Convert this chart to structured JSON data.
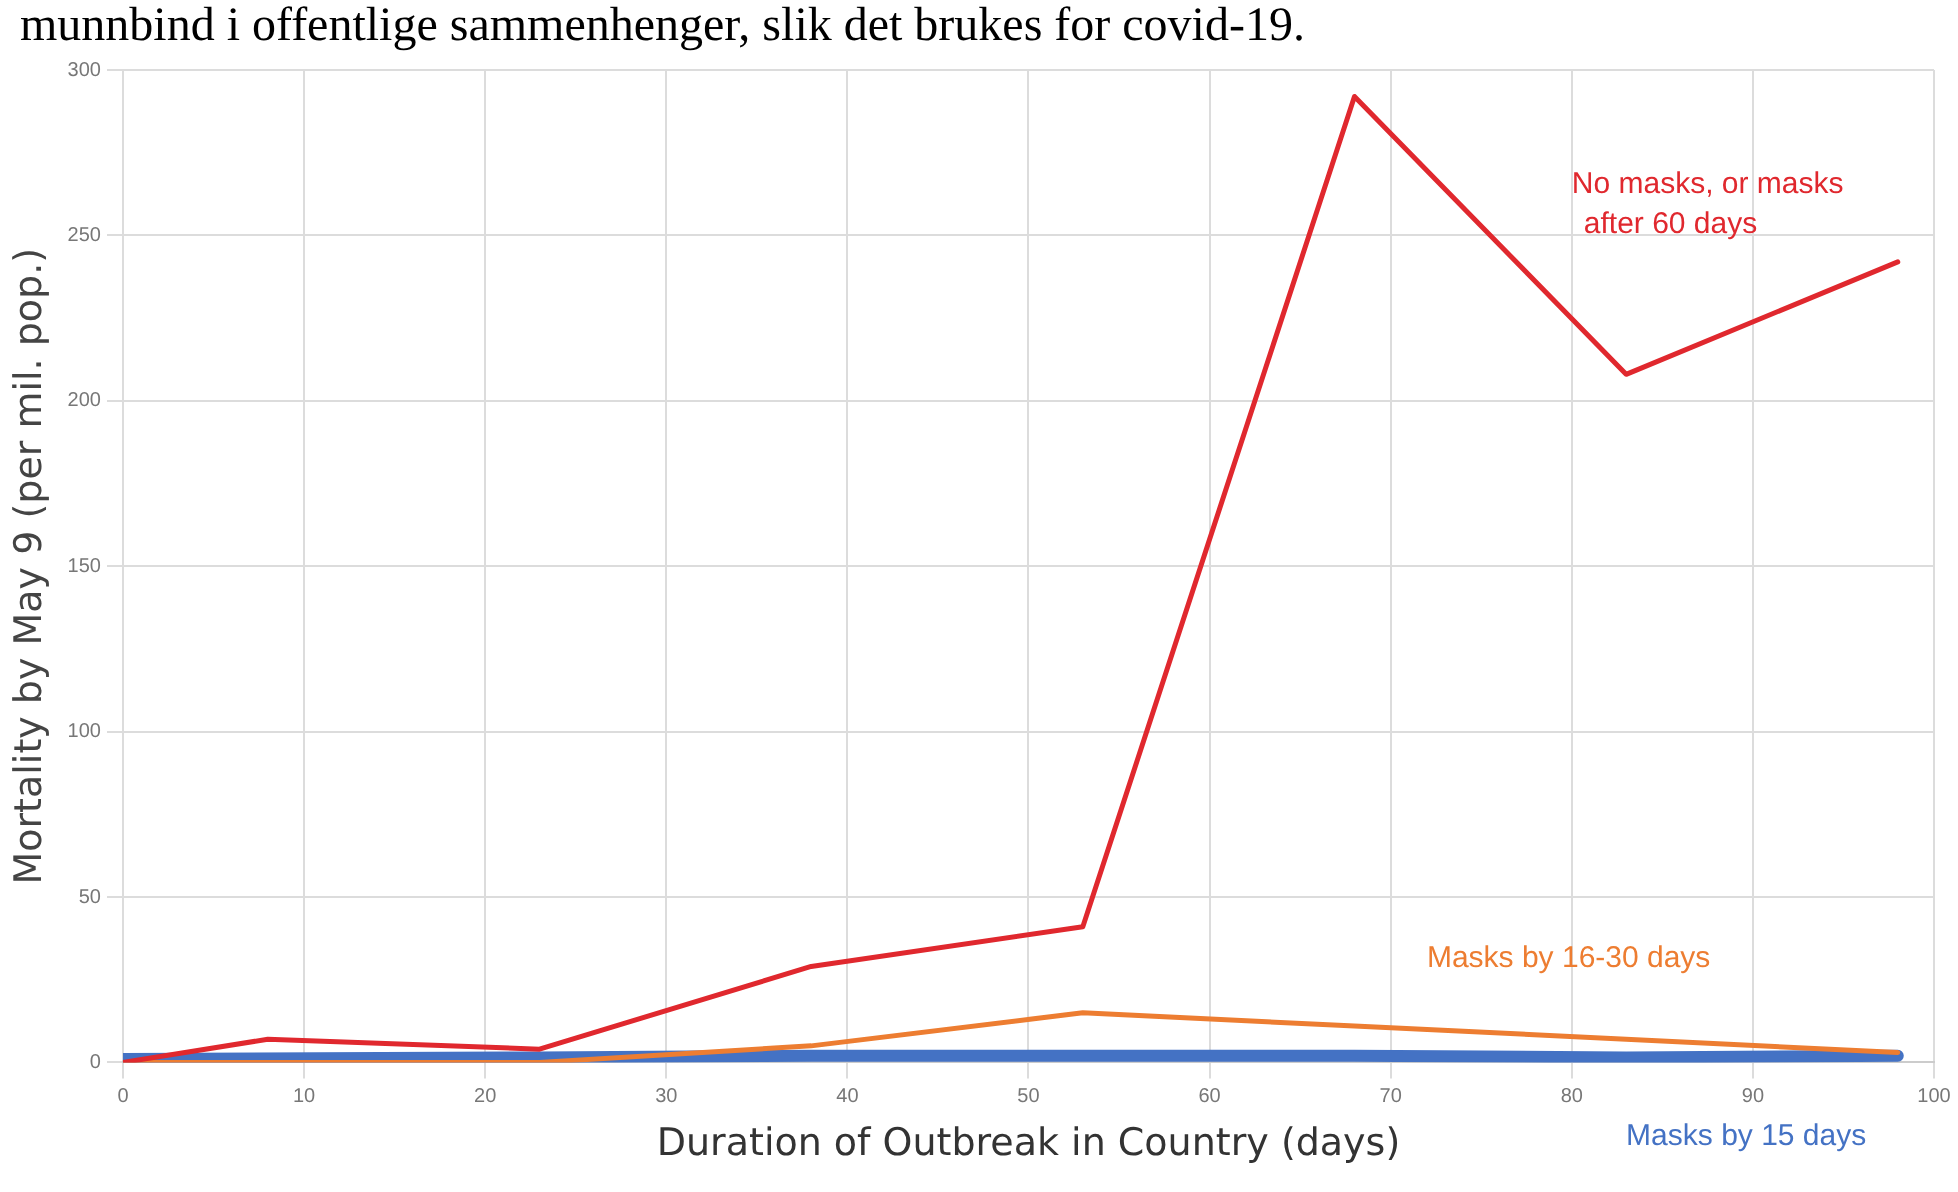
{
  "chart_data": {
    "type": "line",
    "annotations": [
      "munnbind i offentlige sammenhenger, slik det brukes for covid-19."
    ],
    "xlabel": "Duration of Outbreak in Country (days)",
    "ylabel": "Mortality by May 9 (per mil. pop.)",
    "x": [
      0,
      8,
      23,
      38,
      53,
      68,
      83,
      98
    ],
    "series": [
      {
        "name": "No masks, or masks after 60 days",
        "color": "#e0282e",
        "values": [
          0,
          7,
          4,
          29,
          41,
          292,
          208,
          242
        ]
      },
      {
        "name": "Masks by 16-30 days",
        "color": "#ed7d31",
        "x": [
          0,
          23,
          38,
          53,
          68,
          83,
          98
        ],
        "values": [
          0,
          0,
          5,
          15,
          11,
          7,
          3
        ]
      },
      {
        "name": "Masks by 15 days",
        "color": "#4472c4",
        "x": [
          0,
          23,
          38,
          53,
          68,
          83,
          98
        ],
        "values": [
          1,
          1.5,
          2,
          2,
          2,
          1.5,
          2
        ]
      }
    ],
    "xlim": [
      0,
      100
    ],
    "xticks": [
      0,
      10,
      20,
      30,
      40,
      50,
      60,
      70,
      80,
      90,
      100
    ],
    "ylim": [
      0,
      300
    ],
    "yticks": [
      0,
      50,
      100,
      150,
      200,
      250,
      300
    ],
    "grid": true,
    "legend": false,
    "marker": "none",
    "line_style": "solid"
  }
}
